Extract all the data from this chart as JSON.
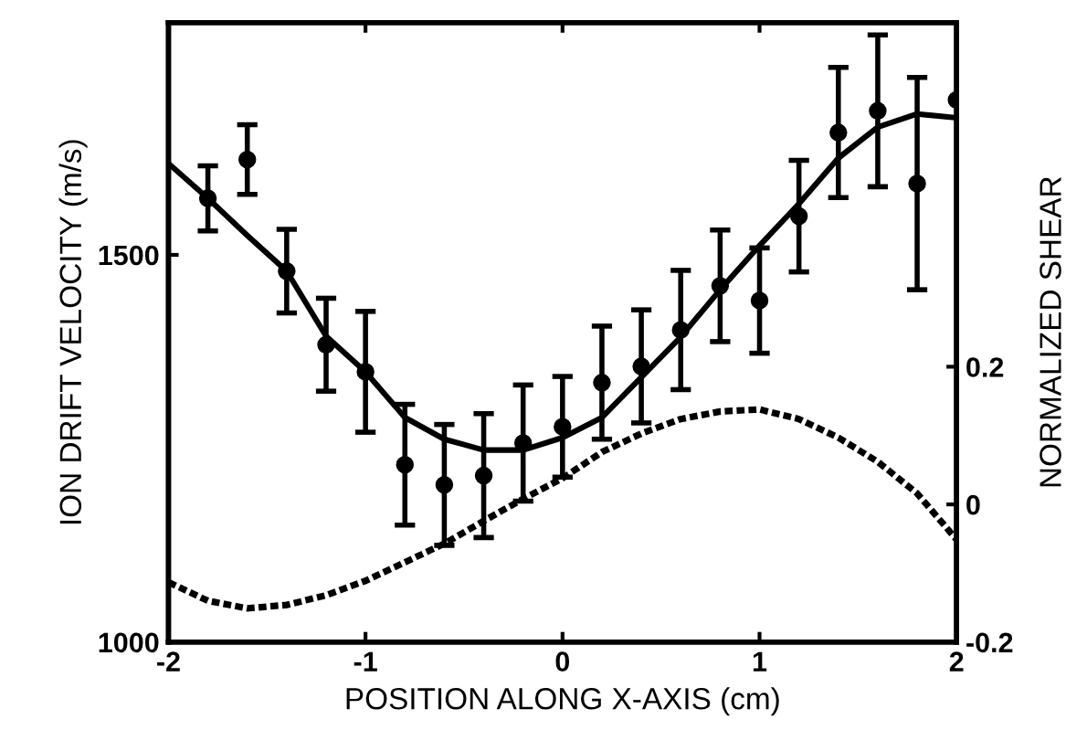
{
  "chart_data": {
    "type": "scatter",
    "xlabel": "POSITION ALONG X-AXIS (cm)",
    "ylabel": "ION DRIFT VELOCITY (m/s)",
    "y2label": "NORMALIZED SHEAR",
    "xlim": [
      -2,
      2
    ],
    "xticks": [
      -2,
      -1,
      0,
      1,
      2
    ],
    "ylim": [
      1000,
      1800
    ],
    "yticks": [
      1000,
      1500
    ],
    "y2lim": [
      -0.2,
      0.7
    ],
    "y2ticks": [
      -0.2,
      0,
      0.2
    ],
    "grid": false,
    "legend": false,
    "series": [
      {
        "color": "#000000",
        "marker": "circle",
        "x": [
          -1.8,
          -1.6,
          -1.4,
          -1.2,
          -1.0,
          -0.8,
          -0.6,
          -0.4,
          -0.2,
          0,
          0.2,
          0.4,
          0.6,
          0.8,
          1.0,
          1.2,
          1.4,
          1.6,
          1.8,
          2.0
        ],
        "values": [
          1573,
          1623,
          1479,
          1384,
          1349,
          1229,
          1203,
          1215,
          1257,
          1278,
          1335,
          1356,
          1403,
          1460,
          1441,
          1550,
          1658,
          1686,
          1592,
          1700
        ],
        "errors": [
          42,
          45,
          54,
          60,
          78,
          78,
          78,
          80,
          75,
          65,
          73,
          73,
          77,
          72,
          68,
          72,
          84,
          98,
          137,
          null
        ]
      },
      {
        "type": "line",
        "color": "#000000",
        "line_style": "solid",
        "x": [
          -2,
          -1.8,
          -1.6,
          -1.4,
          -1.2,
          -1.0,
          -0.8,
          -0.6,
          -0.4,
          -0.2,
          0,
          0.2,
          0.4,
          0.6,
          0.8,
          1.0,
          1.2,
          1.4,
          1.6,
          1.8,
          2.0
        ],
        "values": [
          1618,
          1573,
          1525,
          1479,
          1395,
          1349,
          1290,
          1262,
          1248,
          1248,
          1264,
          1290,
          1342,
          1394,
          1455,
          1512,
          1566,
          1625,
          1665,
          1682,
          1677
        ]
      },
      {
        "type": "line",
        "axis": "y2",
        "color": "#000000",
        "line_style": "dotted",
        "x": [
          -2,
          -1.8,
          -1.6,
          -1.4,
          -1.2,
          -1.0,
          -0.8,
          -0.6,
          -0.4,
          -0.2,
          0,
          0.2,
          0.4,
          0.6,
          0.8,
          1.0,
          1.2,
          1.4,
          1.6,
          1.8,
          2.0
        ],
        "values": [
          -0.113,
          -0.14,
          -0.151,
          -0.146,
          -0.132,
          -0.111,
          -0.084,
          -0.057,
          -0.024,
          0.008,
          0.038,
          0.076,
          0.103,
          0.124,
          0.135,
          0.138,
          0.124,
          0.097,
          0.062,
          0.016,
          -0.051
        ]
      }
    ]
  }
}
